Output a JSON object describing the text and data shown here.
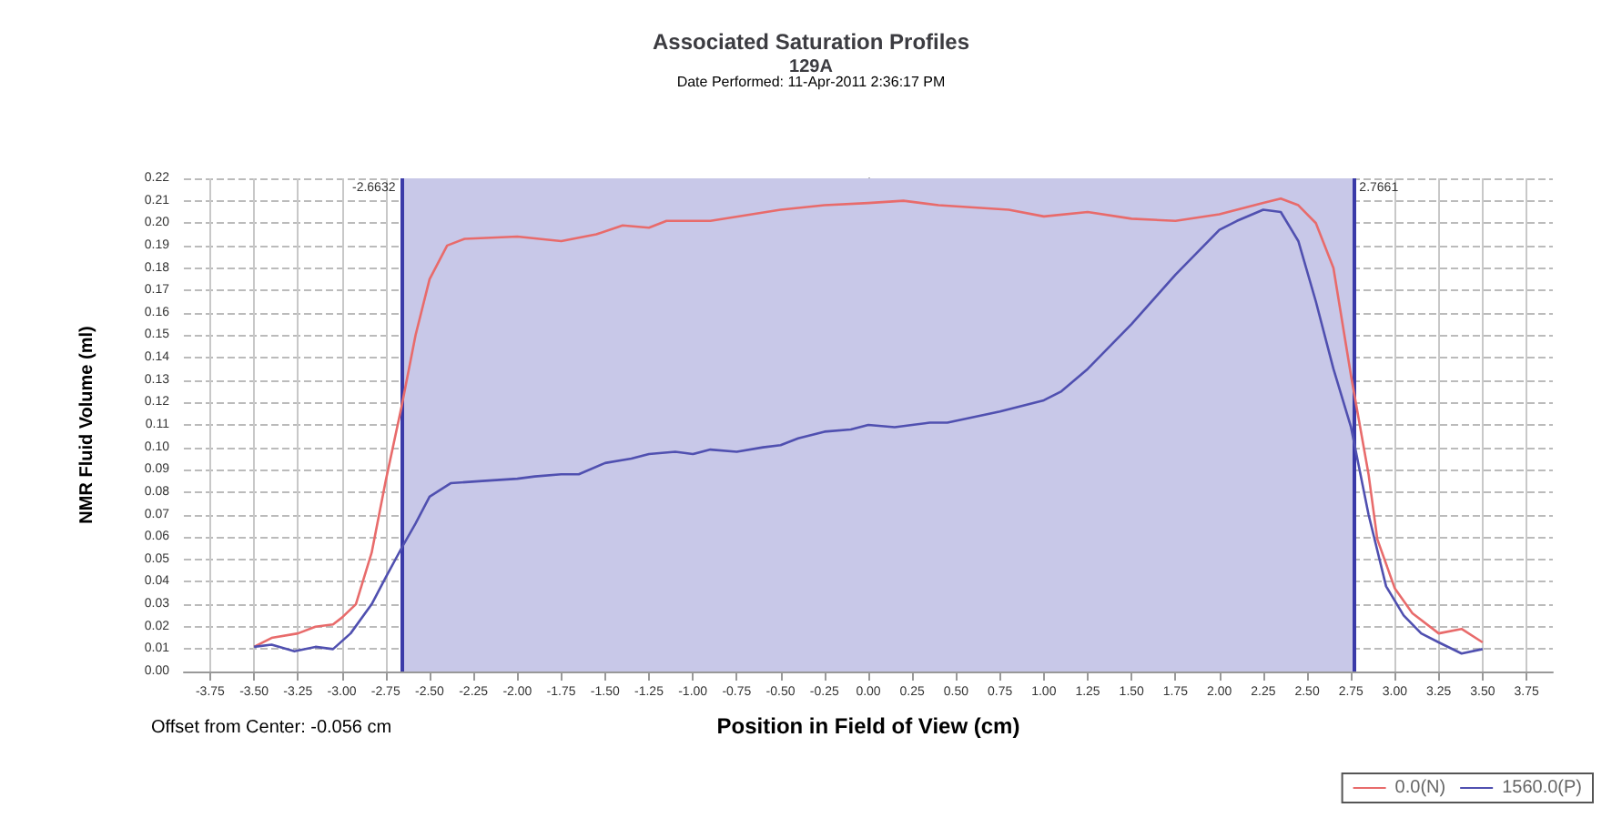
{
  "chart_data": {
    "type": "line",
    "title": "Associated Saturation Profiles",
    "subtitle": "129A",
    "xlabel": "Position in Field of View (cm)",
    "ylabel": "NMR Fluid Volume (ml)",
    "annotations": [
      "Date Performed: 11-Apr-2011 2:36:17 PM",
      "Offset from Center: -0.056 cm"
    ],
    "series": [
      {
        "name": "0.0(N)",
        "color": "#e86b6b",
        "x": [
          -3.5,
          -3.4,
          -3.25,
          -3.15,
          -3.05,
          -3.0,
          -2.92,
          -2.83,
          -2.75,
          -2.66,
          -2.58,
          -2.5,
          -2.4,
          -2.3,
          -2.0,
          -1.75,
          -1.55,
          -1.4,
          -1.25,
          -1.15,
          -0.9,
          -0.5,
          -0.25,
          0,
          0.2,
          0.4,
          0.6,
          0.8,
          1.0,
          1.25,
          1.5,
          1.75,
          2.0,
          2.25,
          2.35,
          2.45,
          2.55,
          2.65,
          2.75,
          2.85,
          2.9,
          3.0,
          3.1,
          3.25,
          3.38,
          3.5
        ],
        "values": [
          0.011,
          0.015,
          0.017,
          0.02,
          0.021,
          0.024,
          0.03,
          0.053,
          0.085,
          0.118,
          0.15,
          0.175,
          0.19,
          0.193,
          0.194,
          0.192,
          0.195,
          0.199,
          0.198,
          0.201,
          0.201,
          0.206,
          0.208,
          0.209,
          0.21,
          0.208,
          0.207,
          0.206,
          0.203,
          0.205,
          0.202,
          0.201,
          0.204,
          0.209,
          0.211,
          0.208,
          0.2,
          0.18,
          0.132,
          0.088,
          0.059,
          0.037,
          0.026,
          0.017,
          0.019,
          0.013
        ]
      },
      {
        "name": "1560.0(P)",
        "color": "#5050b0",
        "x": [
          -3.5,
          -3.4,
          -3.27,
          -3.15,
          -3.05,
          -2.95,
          -2.83,
          -2.75,
          -2.66,
          -2.58,
          -2.5,
          -2.38,
          -2.2,
          -2.0,
          -1.9,
          -1.75,
          -1.65,
          -1.5,
          -1.35,
          -1.25,
          -1.1,
          -1.0,
          -0.9,
          -0.75,
          -0.6,
          -0.5,
          -0.4,
          -0.25,
          -0.1,
          0,
          0.15,
          0.25,
          0.35,
          0.45,
          0.75,
          1.0,
          1.1,
          1.25,
          1.5,
          1.75,
          2.0,
          2.1,
          2.25,
          2.35,
          2.45,
          2.55,
          2.65,
          2.75,
          2.85,
          2.95,
          3.05,
          3.15,
          3.25,
          3.38,
          3.5
        ],
        "values": [
          0.011,
          0.012,
          0.009,
          0.011,
          0.01,
          0.017,
          0.03,
          0.042,
          0.055,
          0.066,
          0.078,
          0.084,
          0.085,
          0.086,
          0.087,
          0.088,
          0.088,
          0.093,
          0.095,
          0.097,
          0.098,
          0.097,
          0.099,
          0.098,
          0.1,
          0.101,
          0.104,
          0.107,
          0.108,
          0.11,
          0.109,
          0.11,
          0.111,
          0.111,
          0.116,
          0.121,
          0.125,
          0.135,
          0.155,
          0.177,
          0.197,
          0.201,
          0.206,
          0.205,
          0.192,
          0.165,
          0.135,
          0.109,
          0.07,
          0.038,
          0.025,
          0.017,
          0.013,
          0.008,
          0.01
        ]
      }
    ],
    "xlim": [
      -3.9,
      3.9
    ],
    "xticks": [
      {
        "value": -3.75,
        "label": "-3.75"
      },
      {
        "value": -3.5,
        "label": "-3.50"
      },
      {
        "value": -3.25,
        "label": "-3.25"
      },
      {
        "value": -3,
        "label": "-3.00"
      },
      {
        "value": -2.75,
        "label": "-2.75"
      },
      {
        "value": -2.5,
        "label": "-2.50"
      },
      {
        "value": -2.25,
        "label": "-2.25"
      },
      {
        "value": -2,
        "label": "-2.00"
      },
      {
        "value": -1.75,
        "label": "-1.75"
      },
      {
        "value": -1.5,
        "label": "-1.50"
      },
      {
        "value": -1.25,
        "label": "-1.25"
      },
      {
        "value": -1,
        "label": "-1.00"
      },
      {
        "value": -0.75,
        "label": "-0.75"
      },
      {
        "value": -0.5,
        "label": "-0.50"
      },
      {
        "value": -0.25,
        "label": "-0.25"
      },
      {
        "value": 0,
        "label": "0.00"
      },
      {
        "value": 0.25,
        "label": "0.25"
      },
      {
        "value": 0.5,
        "label": "0.50"
      },
      {
        "value": 0.75,
        "label": "0.75"
      },
      {
        "value": 1,
        "label": "1.00"
      },
      {
        "value": 1.25,
        "label": "1.25"
      },
      {
        "value": 1.5,
        "label": "1.50"
      },
      {
        "value": 1.75,
        "label": "1.75"
      },
      {
        "value": 2,
        "label": "2.00"
      },
      {
        "value": 2.25,
        "label": "2.25"
      },
      {
        "value": 2.5,
        "label": "2.50"
      },
      {
        "value": 2.75,
        "label": "2.75"
      },
      {
        "value": 3,
        "label": "3.00"
      },
      {
        "value": 3.25,
        "label": "3.25"
      },
      {
        "value": 3.5,
        "label": "3.50"
      },
      {
        "value": 3.75,
        "label": "3.75"
      }
    ],
    "ylim": [
      0,
      0.22
    ],
    "yticks": [
      {
        "value": 0,
        "label": "0.00"
      },
      {
        "value": 0.01,
        "label": "0.01"
      },
      {
        "value": 0.02,
        "label": "0.02"
      },
      {
        "value": 0.03,
        "label": "0.03"
      },
      {
        "value": 0.04,
        "label": "0.04"
      },
      {
        "value": 0.05,
        "label": "0.05"
      },
      {
        "value": 0.06,
        "label": "0.06"
      },
      {
        "value": 0.07,
        "label": "0.07"
      },
      {
        "value": 0.08,
        "label": "0.08"
      },
      {
        "value": 0.09,
        "label": "0.09"
      },
      {
        "value": 0.1,
        "label": "0.10"
      },
      {
        "value": 0.11,
        "label": "0.11"
      },
      {
        "value": 0.12,
        "label": "0.12"
      },
      {
        "value": 0.13,
        "label": "0.13"
      },
      {
        "value": 0.14,
        "label": "0.14"
      },
      {
        "value": 0.15,
        "label": "0.15"
      },
      {
        "value": 0.16,
        "label": "0.16"
      },
      {
        "value": 0.17,
        "label": "0.17"
      },
      {
        "value": 0.18,
        "label": "0.18"
      },
      {
        "value": 0.19,
        "label": "0.19"
      },
      {
        "value": 0.2,
        "label": "0.20"
      },
      {
        "value": 0.21,
        "label": "0.21"
      },
      {
        "value": 0.22,
        "label": "0.22"
      }
    ],
    "bands": [
      {
        "axis": "x",
        "from": -2.6632,
        "to": 2.7661,
        "color": "#c8c8e8"
      }
    ],
    "ref_lines": [
      {
        "axis": "x",
        "value": -2.6632,
        "label": "-2.6632",
        "color": "#3a3aa8"
      },
      {
        "axis": "x",
        "value": 2.7661,
        "label": "2.7661",
        "color": "#3a3aa8"
      }
    ],
    "grid": true,
    "legend": "bottom right",
    "marker": "none",
    "line_style": "solid"
  }
}
